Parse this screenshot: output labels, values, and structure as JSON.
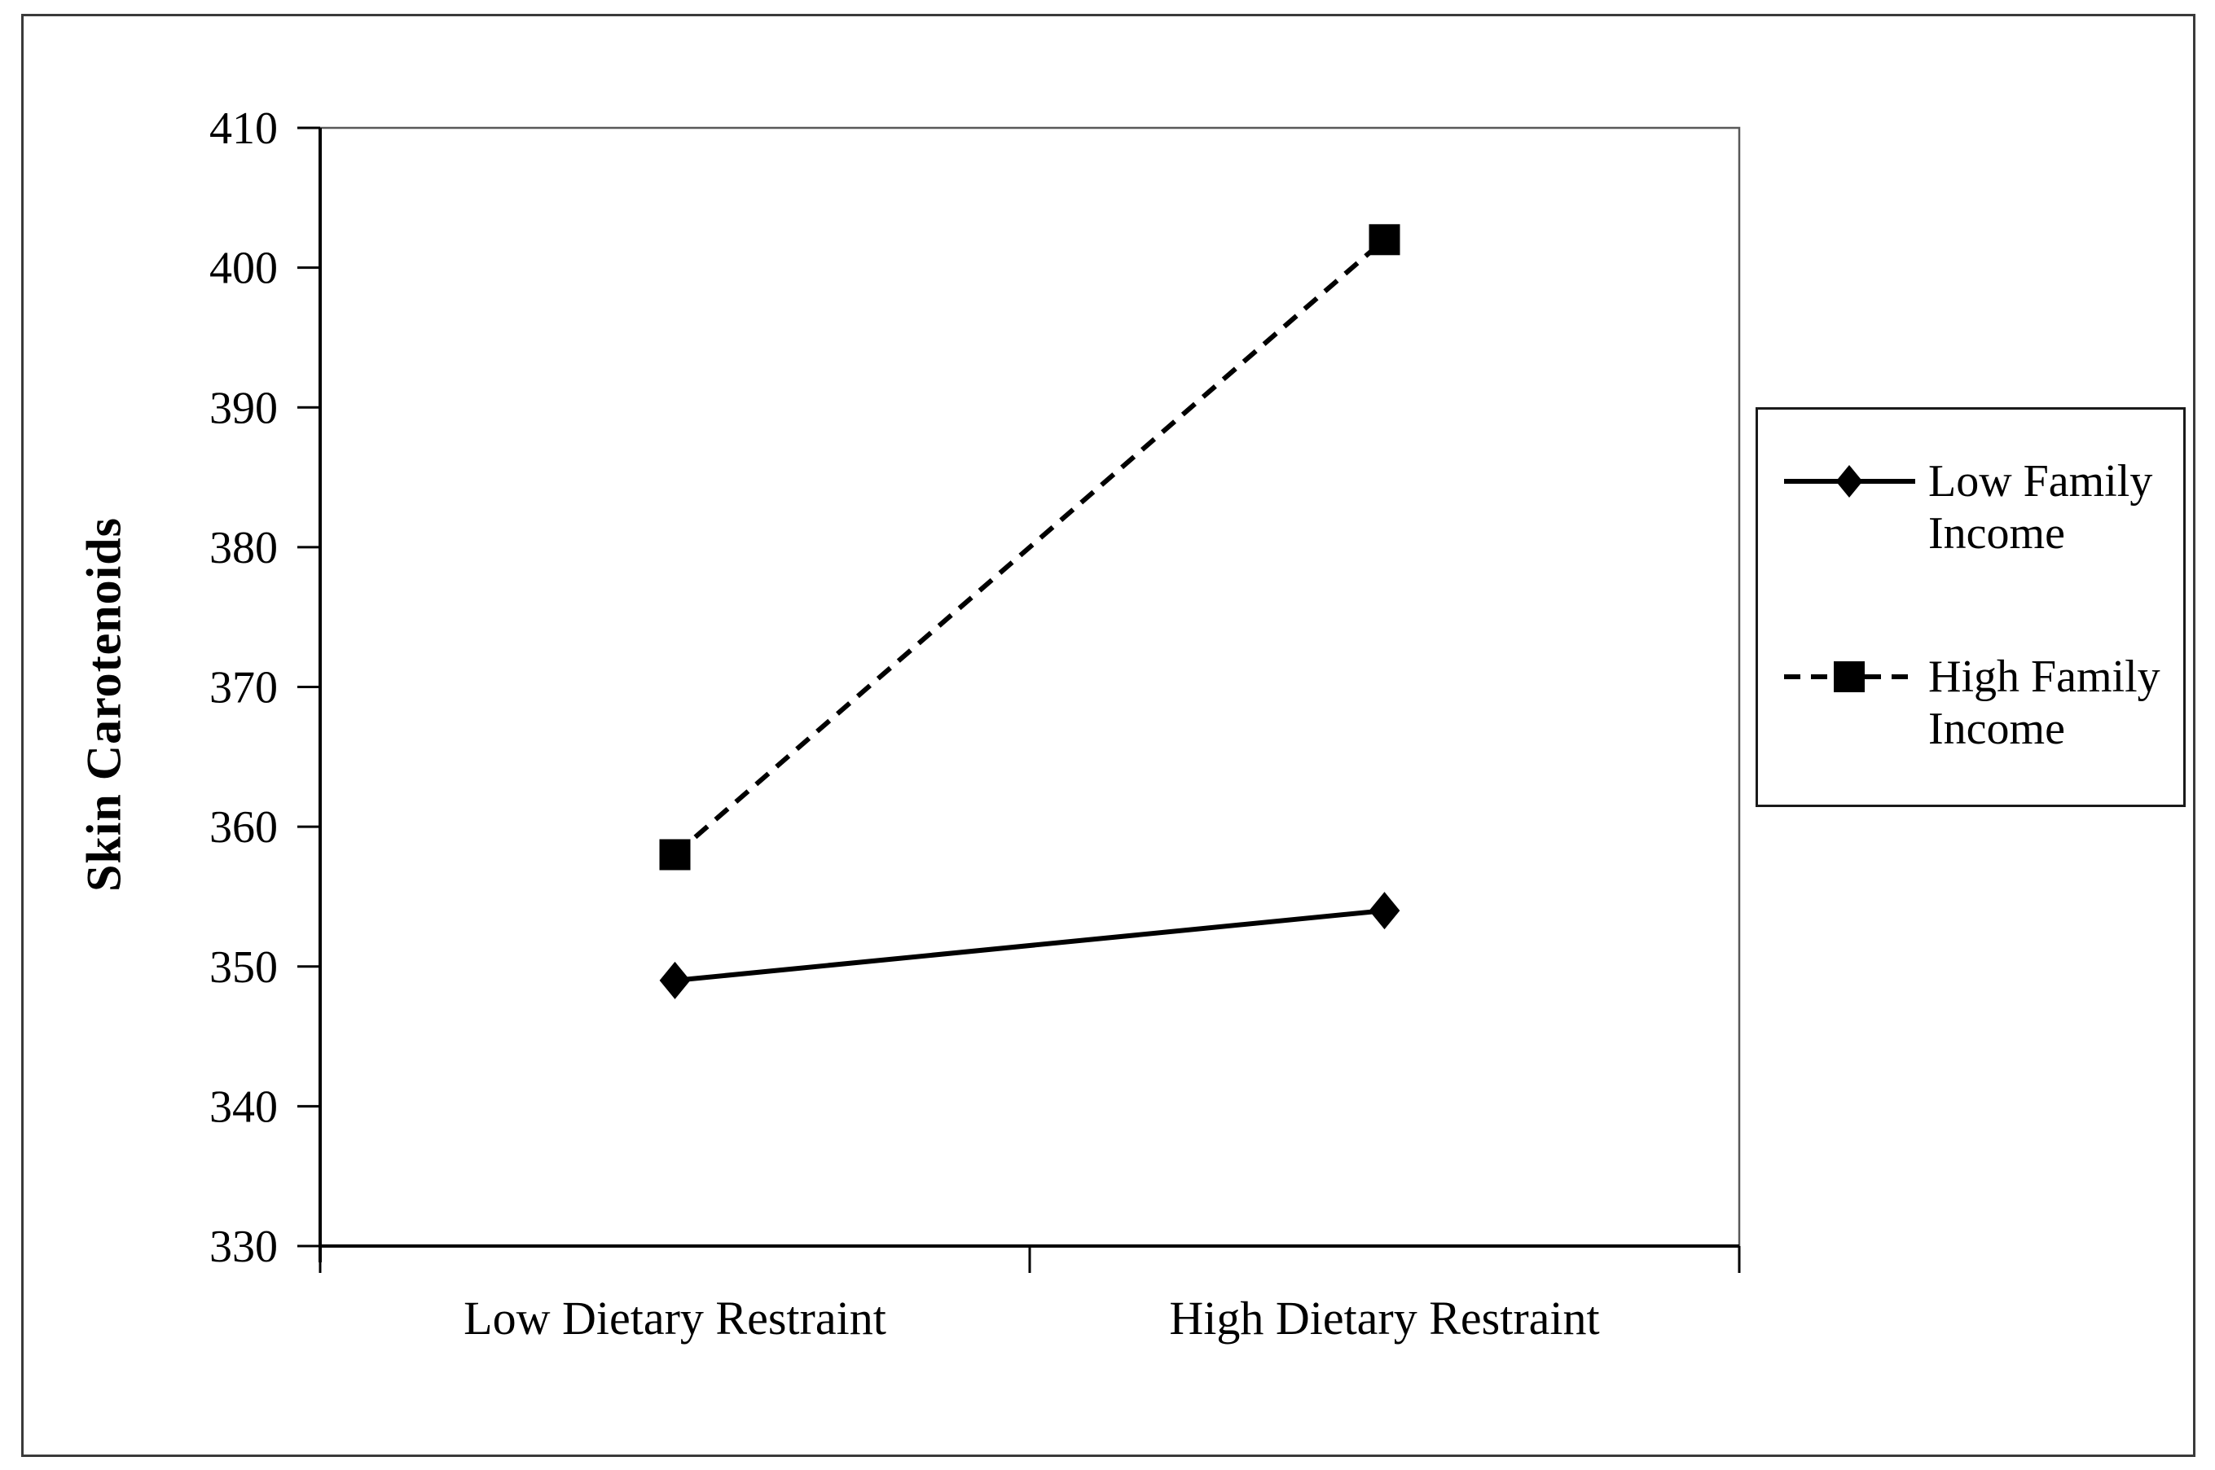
{
  "figure": {
    "background": "#ffffff",
    "outer_border_color": "#3a3a3a",
    "plot_border_color": "#595959",
    "axis_color": "#000000"
  },
  "chart_data": {
    "type": "line",
    "title": "",
    "xlabel": "",
    "ylabel": "Skin Carotenoids",
    "categories": [
      "Low Dietary Restraint",
      "High Dietary Restraint"
    ],
    "series": [
      {
        "name": "Low Family Income",
        "values": [
          349,
          354
        ],
        "marker": "diamond",
        "line_style": "solid",
        "color": "#000000"
      },
      {
        "name": "High Family Income",
        "values": [
          358,
          402
        ],
        "marker": "square",
        "line_style": "dashed",
        "color": "#000000"
      }
    ],
    "y_axis": {
      "min": 330,
      "max": 410,
      "step": 10,
      "tick_labels": [
        "330",
        "340",
        "350",
        "360",
        "370",
        "380",
        "390",
        "400",
        "410"
      ]
    },
    "x_axis": {
      "tick_marks": "between-categories"
    },
    "legend": {
      "position": "right",
      "border": true
    },
    "grid": false,
    "background": "#ffffff"
  }
}
